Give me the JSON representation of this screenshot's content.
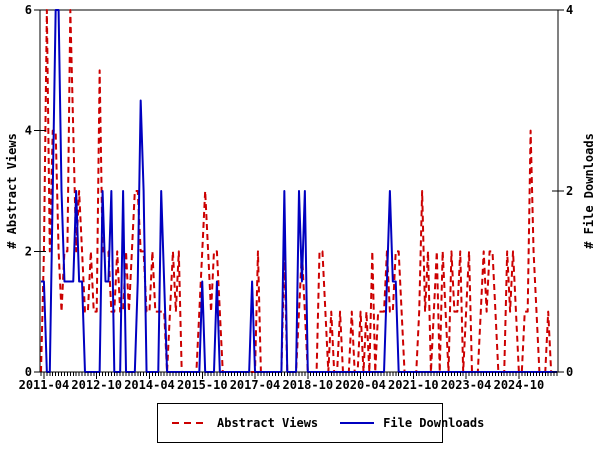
{
  "chart_data": {
    "type": "line",
    "title": "",
    "start_month": "2011-03",
    "months_count": 177,
    "series": [
      {
        "name": "Abstract Views",
        "axis": "left",
        "color": "#cc0000",
        "style": "dashed",
        "values": [
          0,
          2,
          6,
          2,
          4,
          4,
          2,
          1,
          2,
          2,
          6,
          4,
          2,
          3,
          2,
          1,
          1,
          2,
          1,
          1,
          5,
          2,
          2,
          2,
          1,
          1,
          2,
          1,
          1,
          2,
          1,
          2,
          3,
          3,
          2,
          2,
          1,
          1,
          2,
          1,
          1,
          1,
          1,
          0,
          1,
          2,
          1,
          2,
          0,
          0,
          0,
          0,
          0,
          0,
          1,
          2,
          3,
          2,
          1,
          2,
          2,
          1,
          0,
          0,
          0,
          0,
          0,
          0,
          0,
          0,
          0,
          0,
          0,
          0,
          2,
          0,
          0,
          0,
          0,
          0,
          0,
          0,
          0,
          2,
          0,
          0,
          0,
          0,
          1,
          2,
          1,
          0,
          0,
          0,
          0,
          2,
          2,
          1,
          0,
          1,
          0,
          0,
          1,
          0,
          0,
          0,
          1,
          0,
          0,
          1,
          0,
          1,
          0,
          2,
          0,
          1,
          1,
          1,
          2,
          1,
          1,
          2,
          2,
          1,
          0,
          0,
          0,
          0,
          0,
          1,
          3,
          1,
          2,
          0,
          1,
          2,
          0,
          2,
          1,
          0,
          2,
          1,
          1,
          2,
          0,
          1,
          2,
          0,
          0,
          0,
          1,
          2,
          1,
          2,
          2,
          1,
          0,
          0,
          0,
          2,
          1,
          2,
          1,
          0,
          0,
          1,
          1,
          4,
          2,
          1,
          0,
          0,
          0,
          1,
          0,
          0,
          0
        ]
      },
      {
        "name": "File Downloads",
        "axis": "right",
        "color": "#0000c0",
        "style": "solid",
        "values": [
          1,
          1,
          0,
          0,
          2,
          4,
          4,
          2,
          1,
          1,
          1,
          1,
          2,
          1,
          1,
          0,
          0,
          0,
          0,
          0,
          0,
          2,
          1,
          1,
          2,
          0,
          0,
          0,
          2,
          0,
          0,
          0,
          0,
          1,
          3,
          2,
          0,
          0,
          0,
          0,
          0,
          2,
          1,
          0,
          0,
          0,
          0,
          0,
          0,
          0,
          0,
          0,
          0,
          0,
          0,
          1,
          0,
          0,
          0,
          0,
          1,
          0,
          0,
          0,
          0,
          0,
          0,
          0,
          0,
          0,
          0,
          0,
          1,
          0,
          0,
          0,
          0,
          0,
          0,
          0,
          0,
          0,
          0,
          2,
          0,
          0,
          0,
          0,
          2,
          1,
          2,
          0,
          0,
          0,
          0,
          0,
          0,
          0,
          0,
          0,
          0,
          0,
          0,
          0,
          0,
          0,
          0,
          0,
          0,
          0,
          0,
          0,
          0,
          0,
          0,
          0,
          0,
          0,
          1,
          2,
          1,
          1,
          0,
          0,
          0,
          0,
          0,
          0,
          0,
          0,
          0,
          0,
          0,
          0,
          0,
          0,
          0,
          0,
          0,
          0,
          0,
          0,
          0,
          0,
          0,
          0,
          0,
          0,
          0,
          0,
          0,
          0,
          0,
          0,
          0,
          0,
          0,
          0,
          0,
          0,
          0,
          0,
          0,
          0,
          0,
          0,
          0,
          0,
          0,
          0,
          0,
          0,
          0,
          0,
          0,
          0,
          0
        ]
      }
    ],
    "left_axis": {
      "label": "# Abstract Views",
      "range": [
        0,
        6
      ],
      "ticks": [
        0,
        2,
        4,
        6
      ],
      "tick_labels": [
        "0",
        "2",
        "4",
        "6"
      ]
    },
    "right_axis": {
      "label": "# File Downloads",
      "range": [
        0,
        4
      ],
      "ticks": [
        0,
        2,
        4
      ],
      "tick_labels": [
        "0",
        "2",
        "4"
      ]
    },
    "x_axis": {
      "tick_labels": [
        "2011-04",
        "2012-10",
        "2014-04",
        "2015-10",
        "2017-04",
        "2018-10",
        "2020-04",
        "2021-10",
        "2023-04",
        "2024-10"
      ],
      "minor_ticks": "monthly"
    },
    "legend": {
      "position": "below-chart",
      "entries": [
        "Abstract Views",
        "File Downloads"
      ]
    },
    "grid": false,
    "colors": {
      "axis": "#000000",
      "background": "#ffffff"
    }
  }
}
